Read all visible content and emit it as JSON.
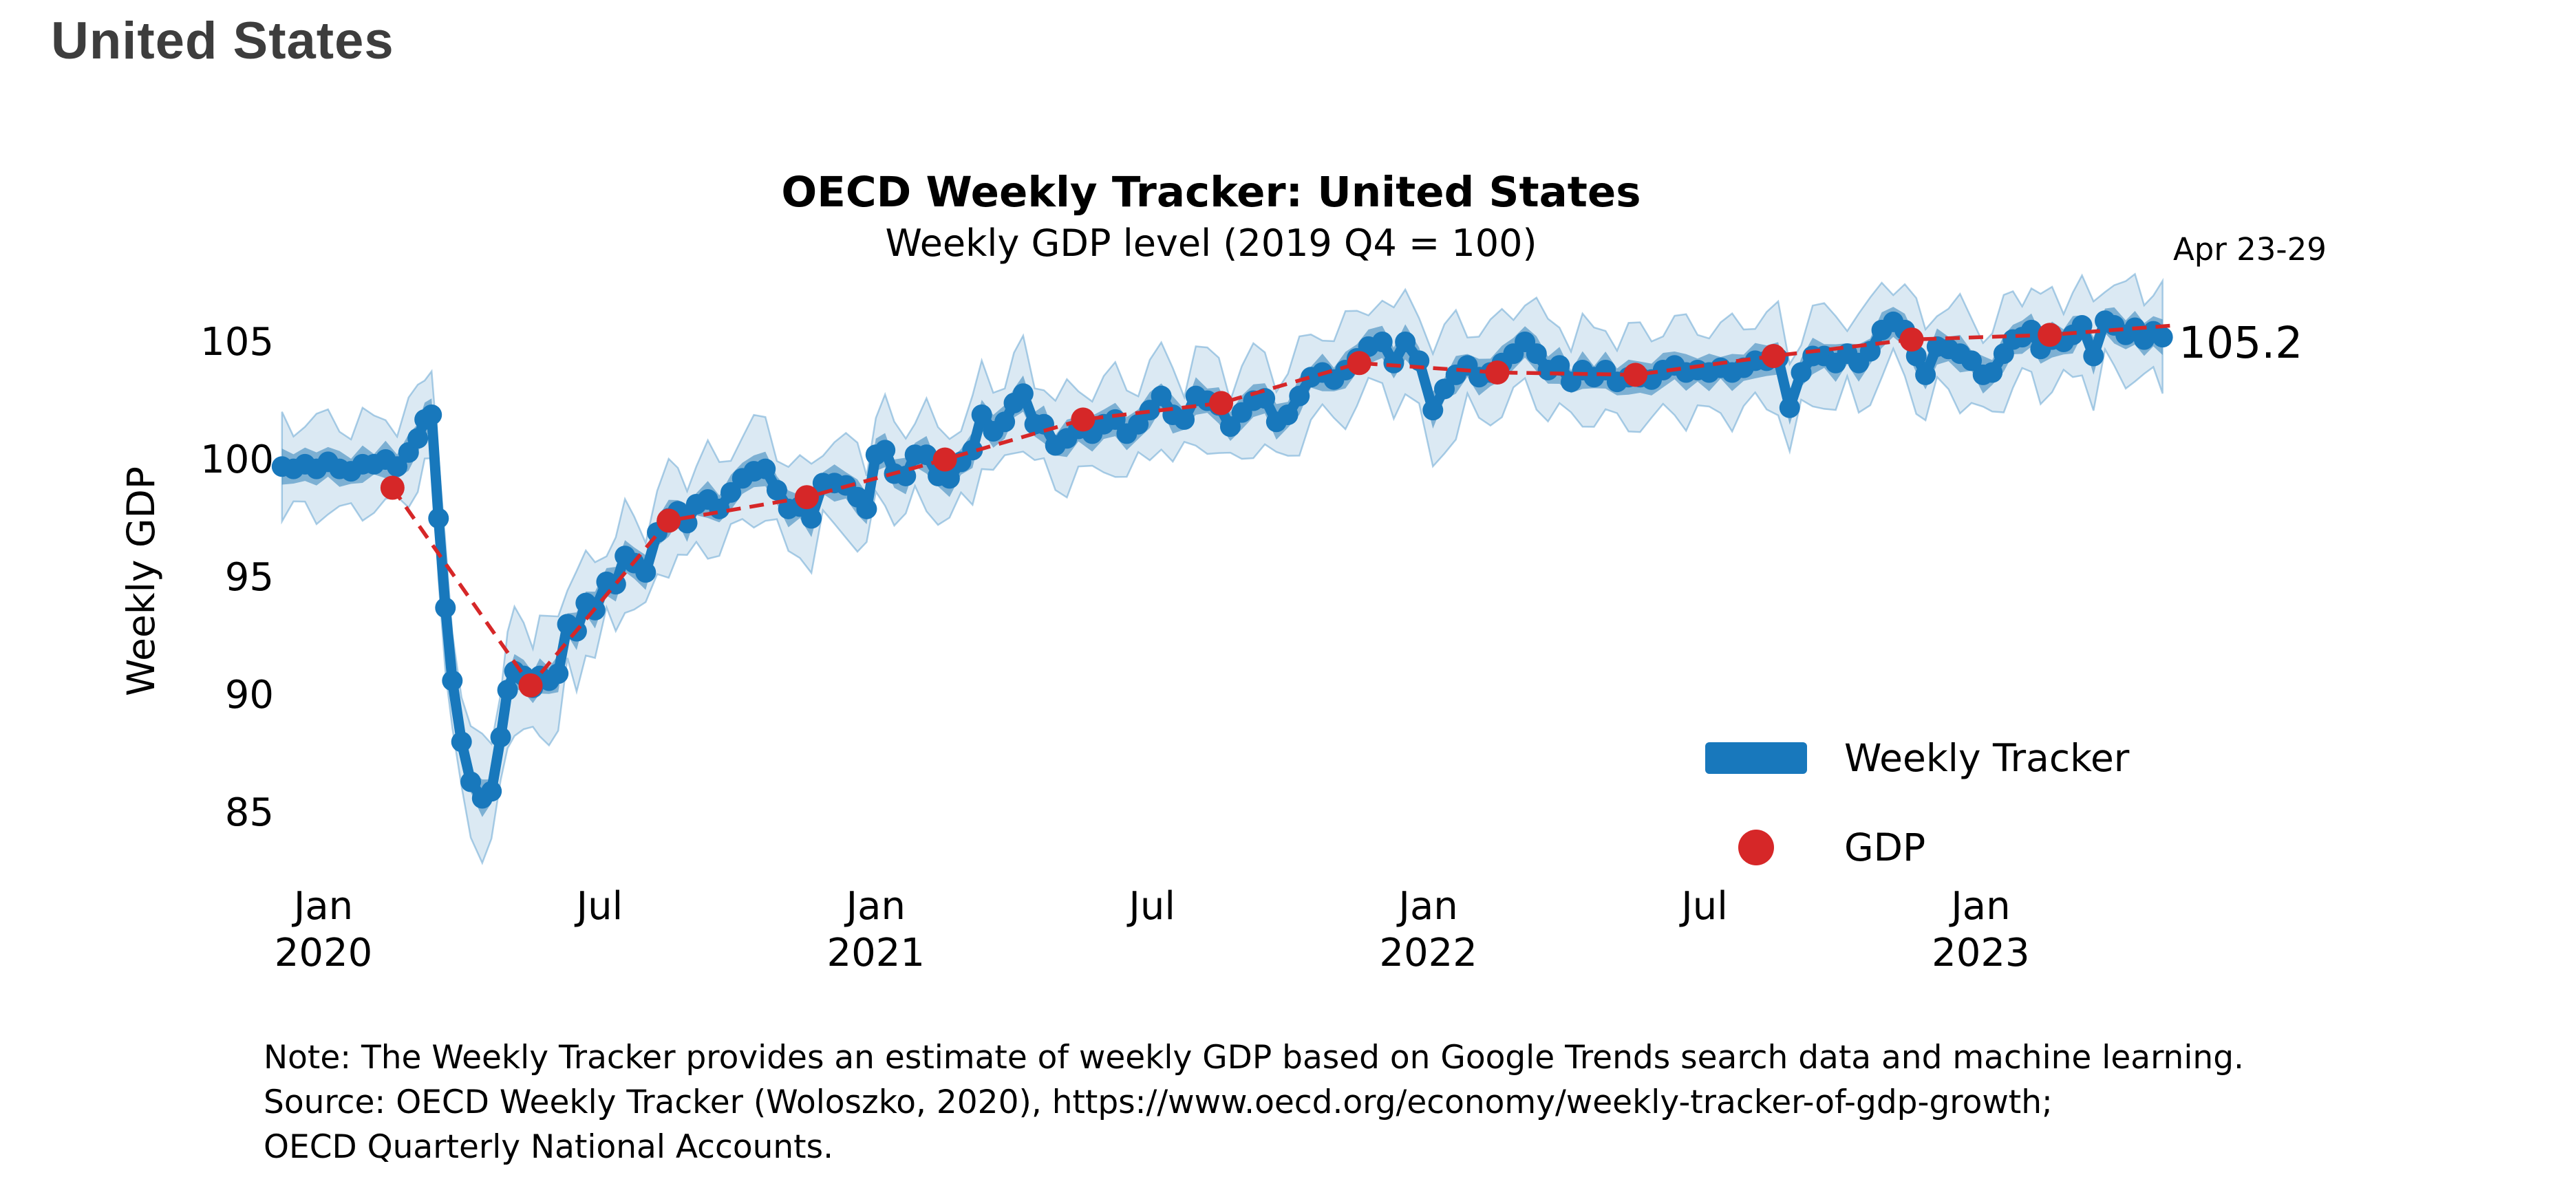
{
  "page": {
    "title": "United States"
  },
  "chart": {
    "title": "OECD Weekly Tracker: United States",
    "subtitle": "Weekly GDP level (2019 Q4 = 100)",
    "y_axis_label": "Weekly GDP",
    "annotation": {
      "period": "Apr 23-29",
      "value": "105.2"
    },
    "legend": [
      {
        "label": "Weekly Tracker",
        "swatch": "line-swatch",
        "color": "#1878bc"
      },
      {
        "label": "GDP",
        "swatch": "dot-swatch",
        "color": "#d62728"
      }
    ],
    "note_lines": [
      "Note: The Weekly Tracker provides an estimate of weekly GDP based on Google Trends search data and machine learning.",
      "Source: OECD Weekly Tracker (Woloszko, 2020), https://www.oecd.org/economy/weekly-tracker-of-gdp-growth;",
      "OECD Quarterly National Accounts."
    ],
    "colors": {
      "tracker_line": "#1878bc",
      "inner_band": "#1f77b4",
      "outer_band_fill": "#cadff1",
      "outer_band_edge": "#5b9fd0",
      "gdp_red": "#d62728",
      "text_dark": "#3d3d3d"
    }
  },
  "chart_data": {
    "type": "line",
    "title": "OECD Weekly Tracker: United States",
    "subtitle": "Weekly GDP level (2019 Q4 = 100)",
    "xlabel": "",
    "ylabel": "Weekly GDP",
    "x_unit": "months since 2020-01-01 (fractional, weekly cadence)",
    "xlim": [
      -1.0,
      41.0
    ],
    "ylim": [
      83.0,
      107.5
    ],
    "grid": false,
    "legend_position": "center-right",
    "y_ticks": [
      85,
      90,
      95,
      100,
      105
    ],
    "x_ticks": [
      {
        "m": 0,
        "label": "Jan",
        "year": "2020"
      },
      {
        "m": 6,
        "label": "Jul"
      },
      {
        "m": 12,
        "label": "Jan",
        "year": "2021"
      },
      {
        "m": 18,
        "label": "Jul"
      },
      {
        "m": 24,
        "label": "Jan",
        "year": "2022"
      },
      {
        "m": 30,
        "label": "Jul"
      },
      {
        "m": 36,
        "label": "Jan",
        "year": "2023"
      }
    ],
    "last_point": {
      "period": "Apr 23-29",
      "value": 105.2
    },
    "series": [
      {
        "name": "Weekly Tracker",
        "type": "line_with_confidence_bands",
        "color": "#1878bc",
        "points": [
          [
            -0.9,
            99.7
          ],
          [
            -0.65,
            99.6
          ],
          [
            -0.4,
            99.8
          ],
          [
            -0.15,
            99.6
          ],
          [
            0.1,
            99.9
          ],
          [
            0.35,
            99.6
          ],
          [
            0.6,
            99.5
          ],
          [
            0.85,
            99.8
          ],
          [
            1.1,
            99.8
          ],
          [
            1.35,
            100.0
          ],
          [
            1.6,
            99.7
          ],
          [
            1.85,
            100.3
          ],
          [
            2.05,
            100.9
          ],
          [
            2.2,
            101.7
          ],
          [
            2.35,
            101.9
          ],
          [
            2.5,
            97.5
          ],
          [
            2.65,
            93.7
          ],
          [
            2.8,
            90.6
          ],
          [
            3.0,
            88.0
          ],
          [
            3.2,
            86.3
          ],
          [
            3.45,
            85.6
          ],
          [
            3.65,
            85.9
          ],
          [
            3.85,
            88.2
          ],
          [
            4.0,
            90.2
          ],
          [
            4.15,
            91.0
          ],
          [
            4.35,
            90.8
          ],
          [
            4.55,
            90.3
          ],
          [
            4.7,
            90.8
          ],
          [
            4.9,
            90.6
          ],
          [
            5.1,
            90.9
          ],
          [
            5.3,
            93.0
          ],
          [
            5.5,
            92.7
          ],
          [
            5.7,
            93.9
          ],
          [
            5.9,
            93.6
          ],
          [
            6.15,
            94.8
          ],
          [
            6.35,
            94.7
          ],
          [
            6.55,
            95.9
          ],
          [
            6.75,
            95.6
          ],
          [
            7.0,
            95.2
          ],
          [
            7.25,
            96.9
          ],
          [
            7.5,
            97.5
          ],
          [
            7.7,
            97.8
          ],
          [
            7.9,
            97.3
          ],
          [
            8.1,
            98.1
          ],
          [
            8.35,
            98.3
          ],
          [
            8.6,
            97.9
          ],
          [
            8.85,
            98.6
          ],
          [
            9.1,
            99.2
          ],
          [
            9.35,
            99.5
          ],
          [
            9.6,
            99.6
          ],
          [
            9.85,
            98.7
          ],
          [
            10.1,
            97.9
          ],
          [
            10.35,
            98.0
          ],
          [
            10.6,
            97.5
          ],
          [
            10.85,
            99.0
          ],
          [
            11.1,
            99.0
          ],
          [
            11.35,
            98.9
          ],
          [
            11.6,
            98.4
          ],
          [
            11.8,
            97.9
          ],
          [
            12.0,
            100.2
          ],
          [
            12.2,
            100.4
          ],
          [
            12.4,
            99.4
          ],
          [
            12.65,
            99.3
          ],
          [
            12.85,
            100.2
          ],
          [
            13.1,
            100.2
          ],
          [
            13.35,
            99.3
          ],
          [
            13.6,
            99.2
          ],
          [
            13.85,
            99.9
          ],
          [
            14.1,
            100.4
          ],
          [
            14.3,
            101.9
          ],
          [
            14.55,
            101.2
          ],
          [
            14.8,
            101.6
          ],
          [
            15.0,
            102.4
          ],
          [
            15.2,
            102.8
          ],
          [
            15.45,
            101.5
          ],
          [
            15.65,
            101.5
          ],
          [
            15.9,
            100.6
          ],
          [
            16.15,
            100.9
          ],
          [
            16.4,
            101.3
          ],
          [
            16.7,
            101.1
          ],
          [
            16.95,
            101.5
          ],
          [
            17.2,
            101.7
          ],
          [
            17.45,
            101.1
          ],
          [
            17.7,
            101.5
          ],
          [
            17.95,
            102.1
          ],
          [
            18.2,
            102.7
          ],
          [
            18.45,
            101.9
          ],
          [
            18.7,
            101.7
          ],
          [
            18.95,
            102.7
          ],
          [
            19.2,
            102.5
          ],
          [
            19.45,
            102.3
          ],
          [
            19.7,
            101.4
          ],
          [
            19.95,
            102.0
          ],
          [
            20.2,
            102.5
          ],
          [
            20.45,
            102.6
          ],
          [
            20.7,
            101.6
          ],
          [
            20.95,
            101.9
          ],
          [
            21.2,
            102.7
          ],
          [
            21.45,
            103.5
          ],
          [
            21.7,
            103.7
          ],
          [
            21.95,
            103.4
          ],
          [
            22.2,
            103.8
          ],
          [
            22.45,
            104.3
          ],
          [
            22.7,
            104.8
          ],
          [
            23.0,
            105.0
          ],
          [
            23.25,
            104.1
          ],
          [
            23.5,
            105.0
          ],
          [
            23.8,
            104.2
          ],
          [
            24.1,
            102.1
          ],
          [
            24.35,
            103.0
          ],
          [
            24.6,
            103.6
          ],
          [
            24.85,
            104.0
          ],
          [
            25.1,
            103.5
          ],
          [
            25.35,
            103.7
          ],
          [
            25.6,
            104.1
          ],
          [
            25.85,
            104.5
          ],
          [
            26.1,
            105.0
          ],
          [
            26.35,
            104.5
          ],
          [
            26.6,
            103.8
          ],
          [
            26.85,
            104.0
          ],
          [
            27.1,
            103.3
          ],
          [
            27.35,
            103.8
          ],
          [
            27.6,
            103.5
          ],
          [
            27.85,
            103.8
          ],
          [
            28.1,
            103.3
          ],
          [
            28.35,
            103.5
          ],
          [
            28.6,
            103.5
          ],
          [
            28.85,
            103.4
          ],
          [
            29.1,
            103.8
          ],
          [
            29.35,
            104.0
          ],
          [
            29.6,
            103.7
          ],
          [
            29.85,
            103.8
          ],
          [
            30.1,
            103.7
          ],
          [
            30.35,
            103.9
          ],
          [
            30.6,
            103.7
          ],
          [
            30.85,
            103.9
          ],
          [
            31.1,
            104.2
          ],
          [
            31.35,
            104.2
          ],
          [
            31.6,
            104.3
          ],
          [
            31.85,
            102.2
          ],
          [
            32.1,
            103.7
          ],
          [
            32.35,
            104.4
          ],
          [
            32.6,
            104.4
          ],
          [
            32.85,
            104.1
          ],
          [
            33.1,
            104.5
          ],
          [
            33.35,
            104.1
          ],
          [
            33.6,
            104.6
          ],
          [
            33.85,
            105.5
          ],
          [
            34.1,
            105.85
          ],
          [
            34.35,
            105.5
          ],
          [
            34.6,
            104.4
          ],
          [
            34.8,
            103.6
          ],
          [
            35.05,
            104.8
          ],
          [
            35.3,
            104.7
          ],
          [
            35.55,
            104.5
          ],
          [
            35.8,
            104.2
          ],
          [
            36.05,
            103.6
          ],
          [
            36.25,
            103.7
          ],
          [
            36.5,
            104.5
          ],
          [
            36.7,
            105.1
          ],
          [
            36.9,
            105.2
          ],
          [
            37.1,
            105.5
          ],
          [
            37.3,
            104.7
          ],
          [
            37.55,
            105.1
          ],
          [
            37.8,
            105.0
          ],
          [
            38.0,
            105.3
          ],
          [
            38.2,
            105.7
          ],
          [
            38.45,
            104.4
          ],
          [
            38.7,
            105.9
          ],
          [
            38.9,
            105.7
          ],
          [
            39.15,
            105.3
          ],
          [
            39.35,
            105.6
          ],
          [
            39.55,
            105.1
          ],
          [
            39.75,
            105.45
          ],
          [
            39.95,
            105.2
          ]
        ],
        "band_note": "inner band ~ +/-0.4-0.8, outer band ~ +/-1.0-2.7, widest during 2020 crash and Jan-2022 dip"
      },
      {
        "name": "GDP",
        "type": "scatter_with_dashed_connector",
        "color": "#d62728",
        "points": [
          [
            1.5,
            98.8
          ],
          [
            4.5,
            90.4
          ],
          [
            7.5,
            97.4
          ],
          [
            10.5,
            98.4
          ],
          [
            13.5,
            100.0
          ],
          [
            16.5,
            101.7
          ],
          [
            19.5,
            102.4
          ],
          [
            22.5,
            104.1
          ],
          [
            25.5,
            103.7
          ],
          [
            28.5,
            103.6
          ],
          [
            31.5,
            104.4
          ],
          [
            34.5,
            105.1
          ],
          [
            37.5,
            105.3
          ]
        ],
        "connector_extension": [
          40.2,
          105.7
        ]
      }
    ]
  }
}
